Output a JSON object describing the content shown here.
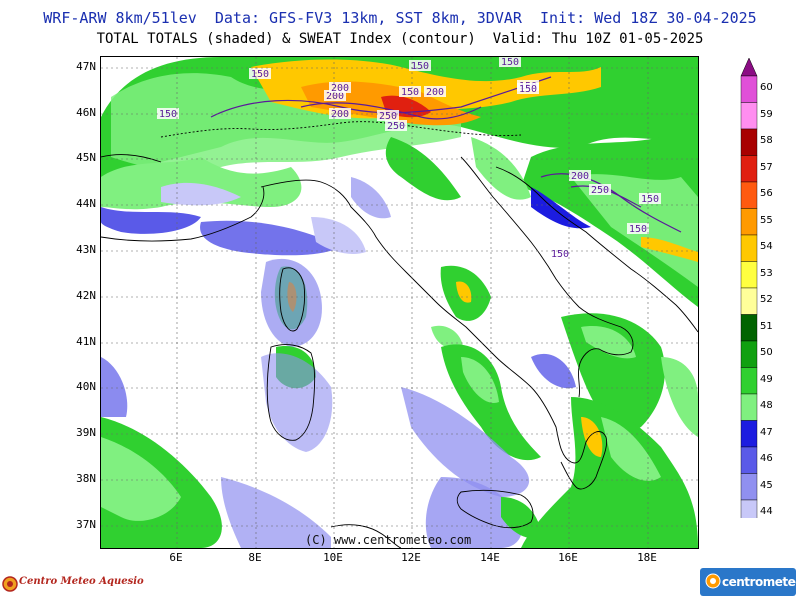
{
  "header": {
    "title_line1": "WRF-ARW 8km/51lev  Data: GFS-FV3 13km, SST 8km, 3DVAR  Init: Wed 18Z 30-04-2025",
    "title_line2": "TOTAL TOTALS (shaded) & SWEAT Index (contour)  Valid: Thu 10Z 01-05-2025"
  },
  "map": {
    "lat_labels": [
      "47N",
      "46N",
      "45N",
      "44N",
      "43N",
      "42N",
      "41N",
      "40N",
      "39N",
      "38N",
      "37N"
    ],
    "lon_labels": [
      "6E",
      "8E",
      "10E",
      "12E",
      "14E",
      "16E",
      "18E"
    ],
    "copyright": "(C) www.centrometeo.com",
    "contour_labels": [
      "150",
      "150",
      "150",
      "150",
      "150",
      "150",
      "150",
      "150",
      "150",
      "150",
      "200",
      "200",
      "200",
      "200",
      "200",
      "250",
      "250",
      "250"
    ]
  },
  "colorbar": {
    "levels": [
      "60",
      "59",
      "58",
      "57",
      "56",
      "55",
      "54",
      "53",
      "52",
      "51",
      "50",
      "49",
      "48",
      "47",
      "46",
      "45",
      "44"
    ],
    "colors": [
      "#8b0c84",
      "#e050d8",
      "#ff8ef0",
      "#a80000",
      "#e02010",
      "#ff5a10",
      "#ff9a00",
      "#ffc800",
      "#ffff40",
      "#ffff9a",
      "#006400",
      "#10a010",
      "#30d030",
      "#80f080",
      "#1c1ce0",
      "#5a5ae8",
      "#9090f0",
      "#c8c8f8"
    ]
  },
  "logos": {
    "left_text": "Centro Meteo Aquesio",
    "right_text": "centrometeo"
  }
}
